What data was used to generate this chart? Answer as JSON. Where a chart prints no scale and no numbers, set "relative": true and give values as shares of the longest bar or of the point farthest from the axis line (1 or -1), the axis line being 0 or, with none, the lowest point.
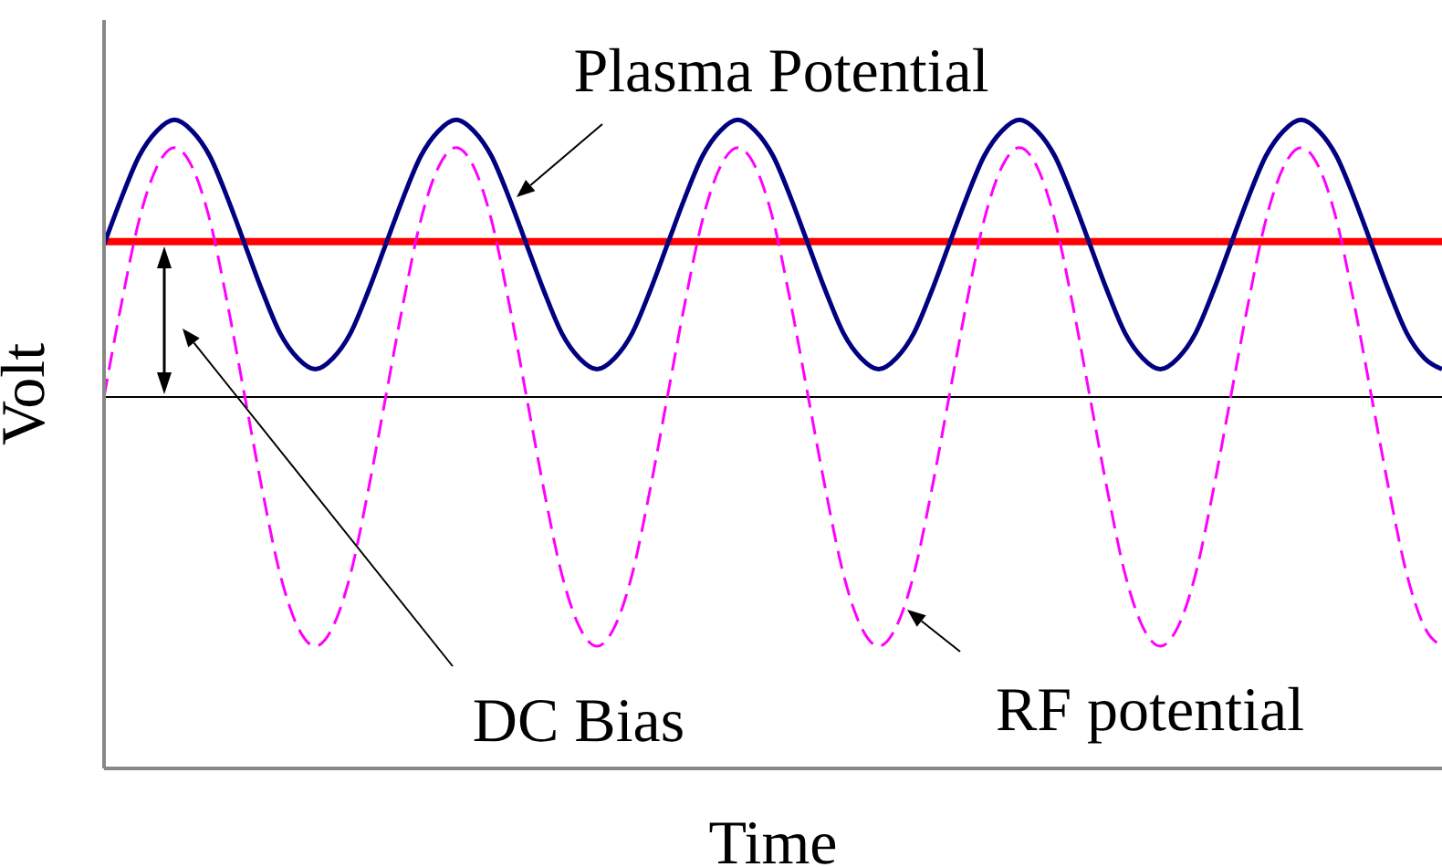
{
  "chart_data": {
    "type": "line",
    "relative": true,
    "xlabel": "Time",
    "ylabel": "Volt",
    "legend": false,
    "grid": false,
    "marker": "none",
    "categories": [
      null,
      null,
      null,
      null,
      null,
      null,
      null,
      null,
      null,
      null,
      null,
      null,
      null,
      null,
      null,
      null,
      null,
      null,
      null,
      null,
      null,
      null,
      null,
      null,
      null,
      null,
      null,
      null,
      null,
      null,
      null,
      null,
      null,
      null,
      null,
      null,
      null,
      null,
      null,
      null,
      null,
      null,
      null,
      null,
      null,
      null,
      null,
      null,
      null,
      null,
      null,
      null,
      null,
      null,
      null,
      null,
      null,
      null,
      null,
      null,
      null,
      null,
      null,
      null,
      null,
      null,
      null,
      null,
      null,
      null,
      null,
      null,
      null,
      null,
      null,
      null,
      null
    ],
    "series": [
      {
        "name": "Plasma Potential",
        "color": "#000080",
        "line_style": "solid",
        "values": [
          0.55,
          0.72,
          0.87,
          0.96,
          1,
          0.96,
          0.87,
          0.72,
          0.55,
          0.38,
          0.23,
          0.14,
          0.1,
          0.14,
          0.23,
          0.38,
          0.55,
          0.72,
          0.87,
          0.96,
          1,
          0.96,
          0.87,
          0.72,
          0.55,
          0.38,
          0.23,
          0.14,
          0.1,
          0.14,
          0.23,
          0.38,
          0.55,
          0.72,
          0.87,
          0.96,
          1,
          0.96,
          0.87,
          0.72,
          0.55,
          0.38,
          0.23,
          0.14,
          0.1,
          0.14,
          0.23,
          0.38,
          0.55,
          0.72,
          0.87,
          0.96,
          1,
          0.96,
          0.87,
          0.72,
          0.55,
          0.38,
          0.23,
          0.14,
          0.1,
          0.14,
          0.23,
          0.38,
          0.55,
          0.72,
          0.87,
          0.96,
          1,
          0.96,
          0.87,
          0.72,
          0.55,
          0.38,
          0.23,
          0.14,
          0.1
        ]
      },
      {
        "name": "RF potential",
        "color": "#ff00ff",
        "line_style": "dashed",
        "values": [
          0,
          0.34,
          0.64,
          0.83,
          0.9,
          0.83,
          0.64,
          0.34,
          0,
          -0.34,
          -0.64,
          -0.83,
          -0.9,
          -0.83,
          -0.64,
          -0.34,
          0,
          0.34,
          0.64,
          0.83,
          0.9,
          0.83,
          0.64,
          0.34,
          0,
          -0.34,
          -0.64,
          -0.83,
          -0.9,
          -0.83,
          -0.64,
          -0.34,
          0,
          0.34,
          0.64,
          0.83,
          0.9,
          0.83,
          0.64,
          0.34,
          0,
          -0.34,
          -0.64,
          -0.83,
          -0.9,
          -0.83,
          -0.64,
          -0.34,
          0,
          0.34,
          0.64,
          0.83,
          0.9,
          0.83,
          0.64,
          0.34,
          0,
          -0.34,
          -0.64,
          -0.83,
          -0.9,
          -0.83,
          -0.64,
          -0.34,
          0,
          0.34,
          0.64,
          0.83,
          0.9,
          0.83,
          0.64,
          0.34,
          0,
          -0.34,
          -0.64,
          -0.83,
          -0.9
        ]
      }
    ],
    "ref_lines": [
      {
        "axis": "y",
        "value": 0,
        "color": "#000000"
      },
      {
        "axis": "y",
        "value": 0.56,
        "color": "#ff0000"
      }
    ],
    "annotations": [
      "DC Bias"
    ]
  }
}
